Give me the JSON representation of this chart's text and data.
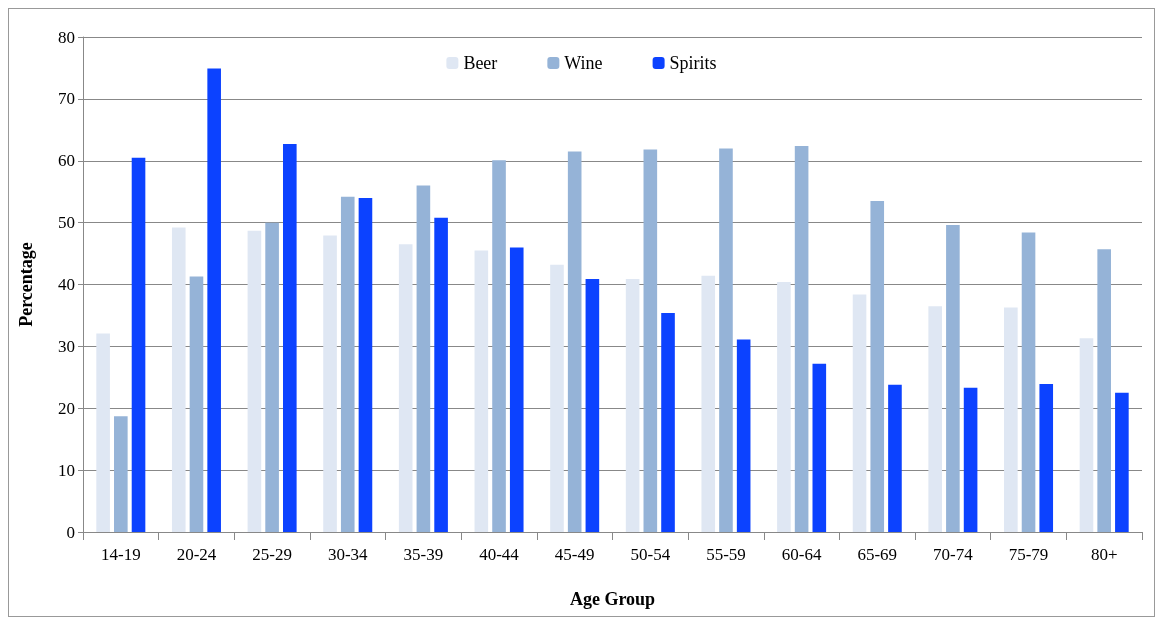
{
  "chart_data": {
    "type": "bar",
    "xlabel": "Age Group",
    "ylabel": "Percentage",
    "categories": [
      "14-19",
      "20-24",
      "25-29",
      "30-34",
      "35-39",
      "40-44",
      "45-49",
      "50-54",
      "55-59",
      "60-64",
      "65-69",
      "70-74",
      "75-79",
      "80+"
    ],
    "series": [
      {
        "name": "Beer",
        "color": "#dfe7f3",
        "values": [
          32.1,
          49.2,
          48.7,
          47.9,
          46.5,
          45.5,
          43.2,
          40.9,
          41.4,
          40.4,
          38.4,
          36.5,
          36.3,
          31.3
        ]
      },
      {
        "name": "Wine",
        "color": "#95b3d7",
        "values": [
          18.7,
          41.3,
          50.0,
          54.2,
          56.0,
          60.1,
          61.5,
          61.8,
          62.0,
          62.4,
          53.5,
          49.6,
          48.4,
          45.7
        ]
      },
      {
        "name": "Spirits",
        "color": "#0c42ff",
        "values": [
          60.5,
          74.9,
          62.7,
          54.0,
          50.8,
          46.0,
          40.9,
          35.4,
          31.1,
          27.2,
          23.8,
          23.3,
          23.9,
          22.5
        ]
      }
    ],
    "ylim": [
      0,
      80
    ],
    "yticks": [
      0,
      10,
      20,
      30,
      40,
      50,
      60,
      70,
      80
    ],
    "grid": "y",
    "legend": "top"
  }
}
